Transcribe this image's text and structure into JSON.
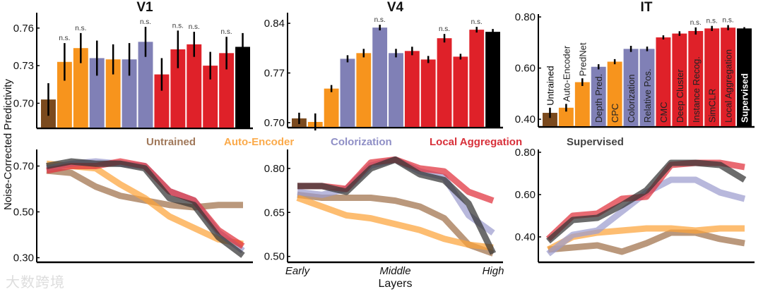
{
  "chart_data": [
    {
      "type": "bar",
      "title": "V1",
      "ylabel": "Noise-Corrected Predictivity",
      "yticks": [
        "0.70",
        "0.73",
        "0.76"
      ],
      "ylim": [
        0.68,
        0.77
      ],
      "categories": [
        "Untrained",
        "Auto-Encoder",
        "PredNet",
        "Depth Pred.",
        "CPC",
        "Colorization",
        "Relative Pos.",
        "CMC",
        "Deep Cluster",
        "Instance Recog.",
        "SimCLR",
        "Local Aggregation",
        "Supervised"
      ],
      "values": [
        0.703,
        0.733,
        0.744,
        0.736,
        0.735,
        0.735,
        0.749,
        0.723,
        0.743,
        0.747,
        0.73,
        0.74,
        0.745
      ],
      "errors": [
        0.013,
        0.015,
        0.012,
        0.014,
        0.012,
        0.013,
        0.012,
        0.013,
        0.015,
        0.01,
        0.011,
        0.013,
        0.011
      ],
      "ns": [
        false,
        true,
        true,
        false,
        false,
        false,
        true,
        false,
        true,
        true,
        false,
        true,
        false
      ],
      "ns_label": "n.s."
    },
    {
      "type": "bar",
      "title": "V4",
      "yticks": [
        "0.70",
        "0.77",
        "0.84"
      ],
      "ylim": [
        0.693,
        0.851
      ],
      "categories": [
        "Untrained",
        "Auto-Encoder",
        "PredNet",
        "Depth Pred.",
        "CPC",
        "Colorization",
        "Relative Pos.",
        "CMC",
        "Deep Cluster",
        "Instance Recog.",
        "SimCLR",
        "Local Aggregation",
        "Supervised"
      ],
      "values": [
        0.706,
        0.701,
        0.748,
        0.79,
        0.798,
        0.834,
        0.798,
        0.801,
        0.789,
        0.819,
        0.793,
        0.831,
        0.828
      ],
      "errors": [
        0.008,
        0.012,
        0.005,
        0.005,
        0.006,
        0.004,
        0.006,
        0.006,
        0.005,
        0.006,
        0.004,
        0.004,
        0.004
      ],
      "ns": [
        false,
        false,
        false,
        false,
        false,
        true,
        false,
        false,
        false,
        true,
        false,
        true,
        false
      ],
      "ns_label": "n.s."
    },
    {
      "type": "bar",
      "title": "IT",
      "yticks": [
        "0.40",
        "0.60",
        "0.80"
      ],
      "ylim": [
        0.37,
        0.8
      ],
      "categories": [
        "Untrained",
        "Auto-Encoder",
        "PredNet",
        "Depth Pred.",
        "CPC",
        "Colorization",
        "Relative Pos.",
        "CMC",
        "Deep Cluster",
        "Instance Recog.",
        "SimCLR",
        "Local Aggregation",
        "Supervised"
      ],
      "values": [
        0.425,
        0.445,
        0.545,
        0.605,
        0.625,
        0.675,
        0.675,
        0.72,
        0.735,
        0.745,
        0.755,
        0.758,
        0.755
      ],
      "errors": [
        0.02,
        0.015,
        0.015,
        0.01,
        0.01,
        0.012,
        0.009,
        0.008,
        0.009,
        0.014,
        0.01,
        0.01,
        0.005
      ],
      "ns": [
        false,
        false,
        false,
        false,
        false,
        false,
        false,
        false,
        false,
        true,
        true,
        true,
        false
      ],
      "ns_label": "n.s."
    },
    {
      "type": "line",
      "title": "V1",
      "yticks": [
        "0.30",
        "0.50",
        "0.70"
      ],
      "ylim": [
        0.28,
        0.76
      ],
      "series": [
        {
          "name": "Untrained",
          "values": [
            0.68,
            0.67,
            0.61,
            0.57,
            0.55,
            0.53,
            0.52,
            0.53,
            0.53
          ]
        },
        {
          "name": "Auto-Encoder",
          "values": [
            0.71,
            0.7,
            0.69,
            0.62,
            0.56,
            0.48,
            0.43,
            0.38,
            0.36
          ]
        },
        {
          "name": "Colorization",
          "values": [
            0.69,
            0.71,
            0.72,
            0.71,
            0.7,
            0.59,
            0.55,
            0.41,
            0.33
          ]
        },
        {
          "name": "Local Aggregation",
          "values": [
            0.68,
            0.7,
            0.7,
            0.72,
            0.7,
            0.59,
            0.55,
            0.42,
            0.35
          ]
        },
        {
          "name": "Supervised",
          "values": [
            0.7,
            0.72,
            0.71,
            0.71,
            0.69,
            0.56,
            0.53,
            0.39,
            0.31
          ]
        }
      ]
    },
    {
      "type": "line",
      "title": "V4",
      "yticks": [
        "0.50",
        "0.65",
        "0.80"
      ],
      "ylim": [
        0.48,
        0.855
      ],
      "xticks": [
        "Early",
        "Middle",
        "High"
      ],
      "xlabel": "Layers",
      "series": [
        {
          "name": "Untrained",
          "values": [
            0.71,
            0.7,
            0.7,
            0.7,
            0.69,
            0.67,
            0.63,
            0.54,
            0.51
          ]
        },
        {
          "name": "Auto-Encoder",
          "values": [
            0.7,
            0.67,
            0.64,
            0.63,
            0.61,
            0.59,
            0.56,
            0.54,
            0.53
          ]
        },
        {
          "name": "Colorization",
          "values": [
            0.72,
            0.71,
            0.73,
            0.81,
            0.83,
            0.79,
            0.77,
            0.64,
            0.58
          ]
        },
        {
          "name": "Local Aggregation",
          "values": [
            0.74,
            0.74,
            0.73,
            0.82,
            0.83,
            0.8,
            0.79,
            0.72,
            0.69
          ]
        },
        {
          "name": "Supervised",
          "values": [
            0.74,
            0.74,
            0.72,
            0.8,
            0.83,
            0.78,
            0.76,
            0.68,
            0.51
          ]
        }
      ]
    },
    {
      "type": "line",
      "title": "IT",
      "yticks": [
        "0.40",
        "0.60",
        "0.80"
      ],
      "ylim": [
        0.28,
        0.8
      ],
      "series": [
        {
          "name": "Untrained",
          "values": [
            0.34,
            0.35,
            0.36,
            0.33,
            0.37,
            0.42,
            0.42,
            0.39,
            0.37
          ]
        },
        {
          "name": "Auto-Encoder",
          "values": [
            0.34,
            0.4,
            0.42,
            0.43,
            0.44,
            0.44,
            0.43,
            0.44,
            0.44
          ]
        },
        {
          "name": "Colorization",
          "values": [
            0.32,
            0.41,
            0.43,
            0.52,
            0.61,
            0.67,
            0.67,
            0.61,
            0.58
          ]
        },
        {
          "name": "Local Aggregation",
          "values": [
            0.39,
            0.5,
            0.51,
            0.58,
            0.59,
            0.74,
            0.75,
            0.75,
            0.73
          ]
        },
        {
          "name": "Supervised",
          "values": [
            0.38,
            0.48,
            0.49,
            0.55,
            0.62,
            0.75,
            0.75,
            0.74,
            0.67
          ]
        }
      ]
    }
  ],
  "legend": [
    "Untrained",
    "Auto-Encoder",
    "Colorization",
    "Local Aggregation",
    "Supervised"
  ],
  "ylabel": "Noise-Corrected Predictivity",
  "colors": {
    "bar": [
      "#7b4a1e",
      "#f7941d",
      "#f7941d",
      "#8080b6",
      "#f7941d",
      "#8080b6",
      "#8080b6",
      "#df2129",
      "#df2129",
      "#df2129",
      "#df2129",
      "#df2129",
      "#000000"
    ],
    "line": {
      "Untrained": "#a0704a",
      "Auto-Encoder": "#fca43a",
      "Colorization": "#9d9dcf",
      "Local Aggregation": "#e0303c",
      "Supervised": "#333333"
    },
    "legend_text": {
      "Untrained": "#a0785a",
      "Auto-Encoder": "#fbaa4a",
      "Colorization": "#8f8fc6",
      "Local Aggregation": "#d8303a",
      "Supervised": "#444444"
    }
  },
  "watermark": "大数跨境"
}
